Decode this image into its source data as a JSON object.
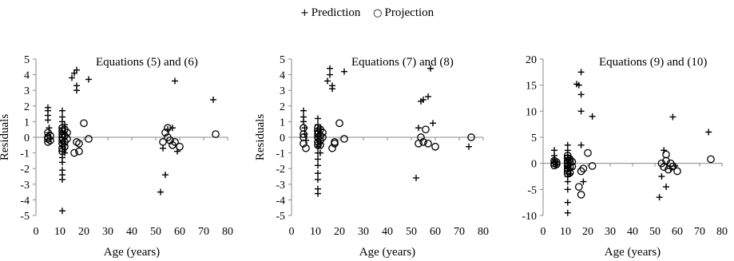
{
  "legend": {
    "prediction_symbol": "+",
    "prediction_label": "Prediction",
    "projection_symbol": "○",
    "projection_label": "Projection"
  },
  "chart_data": [
    {
      "type": "scatter",
      "title": "Equations (5) and (6)",
      "xlabel": "Age (years)",
      "ylabel": "Residuals",
      "xlim": [
        0,
        80
      ],
      "ylim": [
        -5,
        5
      ],
      "xticks": [
        0,
        10,
        20,
        30,
        40,
        50,
        60,
        70,
        80
      ],
      "yticks": [
        -5,
        -4,
        -3,
        -2,
        -1,
        0,
        1,
        2,
        3,
        4,
        5
      ],
      "grid": false,
      "legend_position": "top-center",
      "series": [
        {
          "name": "Prediction",
          "marker": "plus",
          "points": [
            [
              5,
              1.9
            ],
            [
              5,
              1.7
            ],
            [
              5,
              1.4
            ],
            [
              5,
              1.1
            ],
            [
              5.5,
              0.6
            ],
            [
              5.5,
              0.3
            ],
            [
              6,
              -0.1
            ],
            [
              11,
              1.7
            ],
            [
              11,
              1.3
            ],
            [
              11,
              1.0
            ],
            [
              11,
              0.6
            ],
            [
              11,
              0.3
            ],
            [
              11,
              0.0
            ],
            [
              11,
              -0.3
            ],
            [
              11,
              -0.6
            ],
            [
              11,
              -0.9
            ],
            [
              11,
              -1.3
            ],
            [
              11,
              -1.6
            ],
            [
              11,
              -2.1
            ],
            [
              11,
              -2.4
            ],
            [
              11,
              -2.7
            ],
            [
              11,
              -4.7
            ],
            [
              12,
              0.8
            ],
            [
              12,
              0.2
            ],
            [
              12,
              -0.5
            ],
            [
              12,
              -1.0
            ],
            [
              15,
              3.8
            ],
            [
              16,
              4.1
            ],
            [
              17,
              4.3
            ],
            [
              17,
              3.3
            ],
            [
              17,
              3.0
            ],
            [
              22,
              3.7
            ],
            [
              52,
              -3.5
            ],
            [
              53,
              -0.7
            ],
            [
              54,
              -2.4
            ],
            [
              55,
              0.5
            ],
            [
              57,
              0.6
            ],
            [
              58,
              3.6
            ],
            [
              59,
              -0.9
            ],
            [
              74,
              2.4
            ]
          ]
        },
        {
          "name": "Projection",
          "marker": "circle",
          "points": [
            [
              5,
              0.3
            ],
            [
              5,
              0.0
            ],
            [
              5,
              -0.1
            ],
            [
              5,
              -0.3
            ],
            [
              6,
              0.1
            ],
            [
              6,
              -0.2
            ],
            [
              11,
              0.6
            ],
            [
              11,
              0.4
            ],
            [
              11,
              0.2
            ],
            [
              11,
              0.0
            ],
            [
              11,
              -0.2
            ],
            [
              11,
              -0.4
            ],
            [
              11,
              -0.7
            ],
            [
              11,
              -0.9
            ],
            [
              12,
              0.5
            ],
            [
              12,
              0.1
            ],
            [
              12,
              -0.3
            ],
            [
              12,
              -0.6
            ],
            [
              13,
              0.3
            ],
            [
              13,
              -0.1
            ],
            [
              16,
              -1.0
            ],
            [
              17,
              -0.3
            ],
            [
              18,
              -0.4
            ],
            [
              18,
              -0.9
            ],
            [
              20,
              0.9
            ],
            [
              22,
              -0.1
            ],
            [
              53,
              -0.3
            ],
            [
              54,
              0.3
            ],
            [
              55,
              0.6
            ],
            [
              55,
              0.0
            ],
            [
              56,
              -0.2
            ],
            [
              57,
              -0.5
            ],
            [
              58,
              -0.3
            ],
            [
              60,
              -0.6
            ],
            [
              75,
              0.2
            ]
          ]
        }
      ]
    },
    {
      "type": "scatter",
      "title": "Equations (7) and (8)",
      "xlabel": "Age (years)",
      "ylabel": "Residuals",
      "xlim": [
        0,
        80
      ],
      "ylim": [
        -5,
        5
      ],
      "xticks": [
        0,
        10,
        20,
        30,
        40,
        50,
        60,
        70,
        80
      ],
      "yticks": [
        -5,
        -4,
        -3,
        -2,
        -1,
        0,
        1,
        2,
        3,
        4,
        5
      ],
      "grid": false,
      "legend_position": "top-center",
      "series": [
        {
          "name": "Prediction",
          "marker": "plus",
          "points": [
            [
              5,
              1.7
            ],
            [
              5,
              1.3
            ],
            [
              5,
              1.0
            ],
            [
              5.5,
              0.6
            ],
            [
              5.5,
              0.2
            ],
            [
              6,
              -0.2
            ],
            [
              11,
              1.2
            ],
            [
              11,
              0.8
            ],
            [
              11,
              0.4
            ],
            [
              11,
              0.1
            ],
            [
              11,
              -0.2
            ],
            [
              11,
              -0.6
            ],
            [
              11,
              -1.0
            ],
            [
              11,
              -1.4
            ],
            [
              11,
              -1.8
            ],
            [
              11,
              -2.3
            ],
            [
              11,
              -2.7
            ],
            [
              11,
              -3.3
            ],
            [
              11,
              -3.6
            ],
            [
              12,
              0.5
            ],
            [
              12,
              -0.4
            ],
            [
              12,
              -1.0
            ],
            [
              15,
              3.6
            ],
            [
              16,
              4.4
            ],
            [
              16,
              4.0
            ],
            [
              17,
              3.3
            ],
            [
              17,
              3.1
            ],
            [
              22,
              4.2
            ],
            [
              52,
              -2.6
            ],
            [
              53,
              0.6
            ],
            [
              54,
              2.3
            ],
            [
              55,
              2.4
            ],
            [
              57,
              2.6
            ],
            [
              58,
              4.4
            ],
            [
              59,
              0.9
            ],
            [
              74,
              -0.6
            ]
          ]
        },
        {
          "name": "Projection",
          "marker": "circle",
          "points": [
            [
              5,
              0.6
            ],
            [
              5,
              0.2
            ],
            [
              5,
              0.0
            ],
            [
              5,
              -0.4
            ],
            [
              6,
              -0.7
            ],
            [
              11,
              0.6
            ],
            [
              11,
              0.4
            ],
            [
              11,
              0.2
            ],
            [
              11,
              0.0
            ],
            [
              11,
              -0.3
            ],
            [
              11,
              -0.5
            ],
            [
              12,
              0.5
            ],
            [
              12,
              0.1
            ],
            [
              12,
              -0.2
            ],
            [
              12,
              -0.5
            ],
            [
              13,
              0.3
            ],
            [
              13,
              0.0
            ],
            [
              17,
              -0.7
            ],
            [
              18,
              -0.3
            ],
            [
              18,
              -0.4
            ],
            [
              20,
              0.9
            ],
            [
              22,
              -0.1
            ],
            [
              53,
              -0.4
            ],
            [
              54,
              0.0
            ],
            [
              55,
              -0.3
            ],
            [
              56,
              0.5
            ],
            [
              57,
              -0.4
            ],
            [
              60,
              -0.6
            ],
            [
              75,
              0.0
            ]
          ]
        }
      ]
    },
    {
      "type": "scatter",
      "title": "Equations (9) and (10)",
      "xlabel": "Age (years)",
      "ylabel": "",
      "xlim": [
        0,
        80
      ],
      "ylim": [
        -10,
        20
      ],
      "xticks": [
        0,
        10,
        20,
        30,
        40,
        50,
        60,
        70,
        80
      ],
      "yticks": [
        -10,
        -5,
        0,
        5,
        10,
        15,
        20
      ],
      "grid": false,
      "legend_position": "top-center",
      "series": [
        {
          "name": "Prediction",
          "marker": "plus",
          "points": [
            [
              5,
              2.5
            ],
            [
              5,
              1.5
            ],
            [
              5,
              0.8
            ],
            [
              5.5,
              0.3
            ],
            [
              6,
              -0.3
            ],
            [
              11,
              3.5
            ],
            [
              11,
              2.5
            ],
            [
              11,
              1.5
            ],
            [
              11,
              0.8
            ],
            [
              11,
              0.0
            ],
            [
              11,
              -0.8
            ],
            [
              11,
              -1.5
            ],
            [
              11,
              -2.5
            ],
            [
              11,
              -3.5
            ],
            [
              11,
              -5.0
            ],
            [
              11,
              -7.5
            ],
            [
              11,
              -9.5
            ],
            [
              12,
              1.0
            ],
            [
              12,
              -1.0
            ],
            [
              12,
              -2.0
            ],
            [
              15,
              15.2
            ],
            [
              16,
              15.0
            ],
            [
              17,
              17.5
            ],
            [
              17,
              13.2
            ],
            [
              17,
              10.0
            ],
            [
              17,
              3.5
            ],
            [
              18,
              -3.5
            ],
            [
              22,
              9.0
            ],
            [
              52,
              -6.5
            ],
            [
              53,
              -2.5
            ],
            [
              54,
              2.5
            ],
            [
              55,
              -4.5
            ],
            [
              57,
              -1.0
            ],
            [
              58,
              8.9
            ],
            [
              59,
              -0.5
            ],
            [
              74,
              6.0
            ]
          ]
        },
        {
          "name": "Projection",
          "marker": "circle",
          "points": [
            [
              5,
              0.5
            ],
            [
              5,
              0.0
            ],
            [
              5,
              -0.4
            ],
            [
              6,
              0.2
            ],
            [
              6,
              -0.2
            ],
            [
              11,
              1.5
            ],
            [
              11,
              1.0
            ],
            [
              11,
              0.5
            ],
            [
              11,
              0.0
            ],
            [
              11,
              -0.5
            ],
            [
              11,
              -1.0
            ],
            [
              11,
              -1.5
            ],
            [
              11,
              -2.0
            ],
            [
              12,
              0.8
            ],
            [
              12,
              0.2
            ],
            [
              12,
              -0.8
            ],
            [
              12,
              -1.8
            ],
            [
              13,
              0.3
            ],
            [
              13,
              -0.6
            ],
            [
              16,
              -4.5
            ],
            [
              17,
              -6.0
            ],
            [
              17,
              -1.5
            ],
            [
              18,
              -1.0
            ],
            [
              20,
              2.0
            ],
            [
              22,
              -0.5
            ],
            [
              53,
              0.0
            ],
            [
              54,
              -0.7
            ],
            [
              55,
              1.7
            ],
            [
              55,
              0.5
            ],
            [
              56,
              -1.2
            ],
            [
              57,
              0.0
            ],
            [
              58,
              -0.6
            ],
            [
              60,
              -1.5
            ],
            [
              75,
              0.8
            ]
          ]
        }
      ]
    }
  ]
}
